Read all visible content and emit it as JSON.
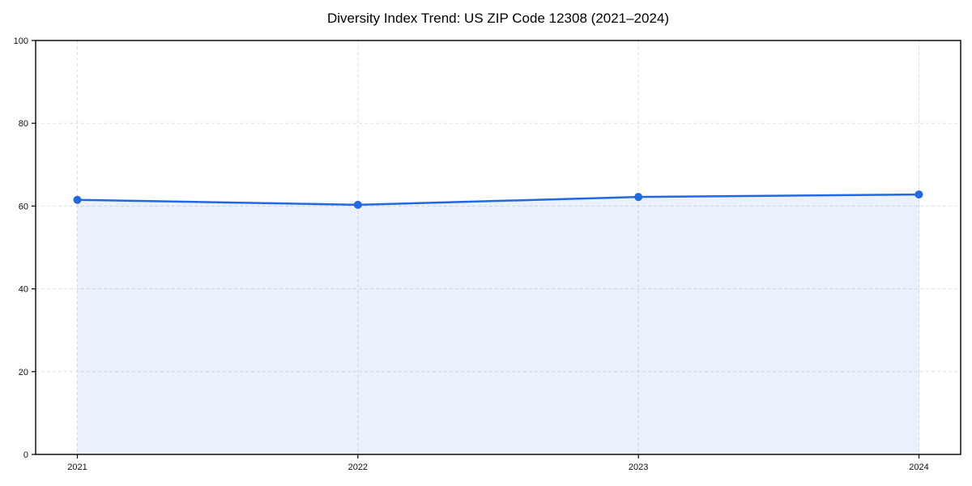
{
  "page": {
    "background": "#ffffff"
  },
  "chart_data": {
    "type": "line",
    "title": "Diversity Index Trend: US ZIP Code 12308 (2021–2024)",
    "x": [
      "2021",
      "2022",
      "2023",
      "2024"
    ],
    "series": [
      {
        "name": "Diversity Index",
        "values": [
          61.5,
          60.3,
          62.2,
          62.8
        ]
      }
    ],
    "xlabel": "",
    "ylabel": "",
    "ylim": [
      0,
      100
    ],
    "yticks": [
      0,
      20,
      40,
      60,
      80,
      100
    ],
    "grid": "dashed-both-axes",
    "legend": "none",
    "area_fill": true,
    "marker": "circle",
    "colors": {
      "line": "#2368E3",
      "marker": "#2368E3",
      "area_fill": "#2368E3",
      "area_fill_opacity": 0.09,
      "grid": "#DEDEDE",
      "axis": "#000000",
      "tick_text": "#111111",
      "title_text": "#000000",
      "background": "#ffffff"
    }
  }
}
